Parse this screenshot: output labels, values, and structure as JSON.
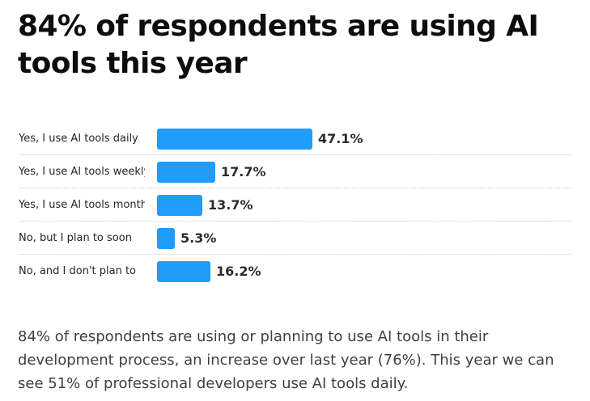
{
  "headline": "84% of respondents are using AI tools this year",
  "caption": "84% of respondents are using or planning to use AI tools in their development process, an increase over last year (76%). This year we can see 51% of professional developers use AI tools daily.",
  "colors": {
    "bar": "#1f9cfc"
  },
  "chart_data": {
    "type": "bar",
    "orientation": "horizontal",
    "title": "",
    "xlabel": "",
    "ylabel": "",
    "xlim": [
      0,
      47.1
    ],
    "grid": false,
    "categories": [
      "Yes, I use AI tools daily",
      "Yes, I use AI tools weekly",
      "Yes, I use AI tools monthly or infrequently",
      "No, but I plan to soon",
      "No, and I don't plan to"
    ],
    "values": [
      47.1,
      17.7,
      13.7,
      5.3,
      16.2
    ],
    "value_labels": [
      "47.1%",
      "17.7%",
      "13.7%",
      "5.3%",
      "16.2%"
    ]
  }
}
